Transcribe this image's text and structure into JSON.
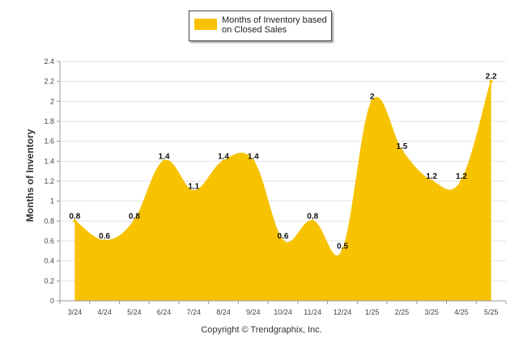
{
  "chart_data": {
    "type": "area",
    "categories": [
      "3/24",
      "4/24",
      "5/24",
      "6/24",
      "7/24",
      "8/24",
      "9/24",
      "10/24",
      "11/24",
      "12/24",
      "1/25",
      "2/25",
      "3/25",
      "4/25",
      "5/25"
    ],
    "series": [
      {
        "name_line1": "Months of Inventory based",
        "name_line2": "on Closed Sales",
        "values": [
          0.8,
          0.6,
          0.8,
          1.4,
          1.1,
          1.4,
          1.4,
          0.6,
          0.8,
          0.5,
          2,
          1.5,
          1.2,
          1.2,
          2.2
        ],
        "labels": [
          "0.8",
          "0.6",
          "0.8",
          "1.4",
          "1.1",
          "1.4",
          "1.4",
          "0.6",
          "0.8",
          "0.5",
          "2",
          "1.5",
          "1.2",
          "1.2",
          "2.2"
        ]
      }
    ],
    "ylabel": "Months of Inventory",
    "ylim": [
      0,
      2.4
    ],
    "yticks": [
      "0",
      "0.2",
      "0.4",
      "0.6",
      "0.8",
      "1",
      "1.2",
      "1.4",
      "1.6",
      "1.8",
      "2",
      "2.2",
      "2.4"
    ],
    "grid": true,
    "legend": "top-center",
    "color": "#F7C200"
  },
  "footer": {
    "copyright": "Copyright © Trendgraphix, Inc."
  }
}
